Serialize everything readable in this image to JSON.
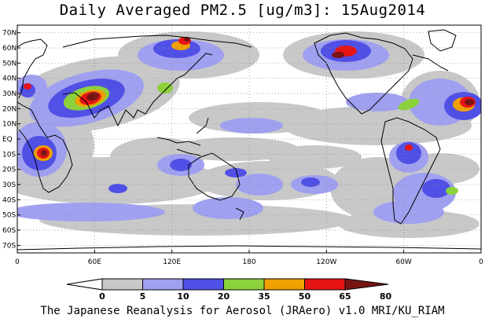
{
  "title": "Daily Averaged PM2.5 [ug/m3]: 15Aug2014",
  "footer": "The Japanese Reanalysis for Aerosol (JRAero) v1.0 MRI/KU_RIAM",
  "lat_labels": [
    "70N",
    "60N",
    "50N",
    "40N",
    "30N",
    "20N",
    "10N",
    "EQ",
    "10S",
    "20S",
    "30S",
    "40S",
    "50S",
    "60S",
    "70S"
  ],
  "lon_labels": [
    "0",
    "60E",
    "120E",
    "180",
    "120W",
    "60W",
    "0"
  ],
  "colorbar": {
    "levels": [
      "0",
      "5",
      "10",
      "20",
      "35",
      "50",
      "65",
      "80"
    ],
    "colors": [
      "#ffffff",
      "#c8c8c8",
      "#a0a0f0",
      "#5050e6",
      "#8cd23c",
      "#f0a000",
      "#e61414",
      "#781414"
    ]
  },
  "field_colors": {
    "c5": "#c8c8c8",
    "c10": "#a0a0f0",
    "c20": "#5050e6",
    "c35": "#8cd23c",
    "c50": "#f0a000",
    "c65": "#e61414",
    "c80": "#781414"
  }
}
